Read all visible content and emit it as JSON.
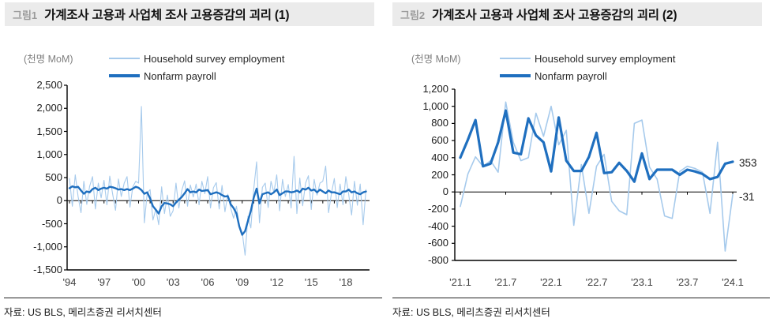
{
  "colors": {
    "household": "#a6caec",
    "nonfarm": "#1f6fbf",
    "axis": "#000000",
    "title_bar_bg": "#ebebeb",
    "fig_label": "#9a9a9a",
    "unit_text": "#7f7f7f"
  },
  "figure1": {
    "fig_label": "그림1",
    "title": "가계조사 고용과 사업체 조사 고용증감의 괴리 (1)",
    "unit": "(천명 MoM)",
    "source": "자료: US BLS, 메리츠증권 리서치센터"
  },
  "figure2": {
    "fig_label": "그림2",
    "title": "가계조사 고용과 사업체 조사 고용증감의 괴리 (2)",
    "unit": "(천명 MoM)",
    "source": "자료: US BLS, 메리츠증권 리서치센터",
    "end_label_nonfarm": "353",
    "end_label_household": "-31"
  },
  "chart_data": [
    {
      "type": "line",
      "title": "가계조사 고용과 사업체 조사 고용증감의 괴리 (1)",
      "ylabel": "(천명 MoM)",
      "ylim": [
        -1500,
        2500
      ],
      "ytick_step": 500,
      "ytick_labels": [
        "2,500",
        "2,000",
        "1,500",
        "1,000",
        "500",
        "0",
        "-500",
        "-1,000",
        "-1,500"
      ],
      "x_start": 1994,
      "x_end": 2019.75,
      "points_per_year": 4,
      "resolution_note": "values in thousands MoM, estimated from chart at quarterly resolution",
      "xtick_labels": [
        "'94",
        "'97",
        "'00",
        "'03",
        "'06",
        "'09",
        "'12",
        "'15",
        "'18"
      ],
      "xtick_positions": [
        0,
        12,
        24,
        36,
        48,
        60,
        72,
        84,
        96
      ],
      "grid": false,
      "legend_position": "top",
      "series": [
        {
          "name": "Household survey employment",
          "values": [
            480,
            -120,
            560,
            90,
            -260,
            420,
            -80,
            310,
            520,
            -180,
            380,
            60,
            440,
            -90,
            530,
            140,
            -210,
            470,
            90,
            380,
            520,
            -140,
            300,
            420,
            380,
            2040,
            -480,
            160,
            240,
            -420,
            -180,
            -520,
            300,
            -280,
            120,
            -340,
            -220,
            380,
            -160,
            220,
            430,
            -120,
            340,
            80,
            360,
            -90,
            420,
            150,
            520,
            -160,
            280,
            390,
            -180,
            330,
            -240,
            140,
            -160,
            -380,
            -120,
            -560,
            -680,
            -1180,
            -340,
            -590,
            240,
            840,
            -480,
            290,
            380,
            -150,
            420,
            180,
            560,
            -220,
            460,
            90,
            350,
            -160,
            958,
            -280,
            490,
            -110,
            380,
            540,
            -190,
            460,
            120,
            380,
            420,
            750,
            -260,
            160,
            480,
            -150,
            360,
            -90,
            520,
            140,
            -310,
            420,
            -100,
            360,
            -520,
            240
          ]
        },
        {
          "name": "Nonfarm payroll",
          "values": [
            270,
            310,
            290,
            300,
            220,
            150,
            200,
            180,
            250,
            280,
            230,
            260,
            280,
            260,
            300,
            290,
            270,
            240,
            250,
            230,
            250,
            230,
            260,
            300,
            280,
            230,
            150,
            180,
            50,
            -120,
            -200,
            -280,
            -120,
            -50,
            -60,
            -80,
            -120,
            -40,
            20,
            80,
            160,
            250,
            180,
            200,
            180,
            240,
            210,
            220,
            230,
            140,
            160,
            180,
            160,
            120,
            90,
            100,
            -80,
            -160,
            -280,
            -560,
            -740,
            -660,
            -440,
            -220,
            60,
            260,
            -60,
            140,
            160,
            180,
            140,
            180,
            240,
            120,
            160,
            200,
            200,
            180,
            190,
            220,
            180,
            260,
            240,
            280,
            220,
            240,
            180,
            240,
            200,
            160,
            220,
            180,
            180,
            160,
            140,
            200,
            200,
            240,
            180,
            200,
            160,
            140,
            180,
            200
          ]
        }
      ]
    },
    {
      "type": "line",
      "title": "가계조사 고용과 사업체 조사 고용증감의 괴리 (2)",
      "ylabel": "(천명 MoM)",
      "ylim": [
        -800,
        1200
      ],
      "ytick_step": 200,
      "ytick_labels": [
        "1,200",
        "1,000",
        "800",
        "600",
        "400",
        "200",
        "0",
        "-200",
        "-400",
        "-600",
        "-800"
      ],
      "x_start": 2021.0,
      "x_end": 2024.0,
      "points_per_year": 12,
      "resolution_note": "values in thousands MoM, monthly Jan-2021 to Jan-2024, estimated from chart",
      "xtick_labels": [
        "'21.1",
        "'21.7",
        "'22.1",
        "'22.7",
        "'23.1",
        "'23.7",
        "'24.1"
      ],
      "xtick_positions": [
        0,
        6,
        12,
        18,
        24,
        30,
        36
      ],
      "grid": false,
      "legend_position": "top",
      "end_labels": {
        "Nonfarm payroll": 353,
        "Household survey employment": -31
      },
      "series": [
        {
          "name": "Household survey employment",
          "values": [
            -170,
            210,
            410,
            300,
            365,
            230,
            1050,
            580,
            365,
            400,
            920,
            650,
            1000,
            550,
            720,
            -390,
            320,
            -250,
            300,
            440,
            -110,
            -220,
            -265,
            800,
            840,
            290,
            150,
            -280,
            -310,
            240,
            300,
            275,
            230,
            -250,
            580,
            -690,
            -31
          ]
        },
        {
          "name": "Nonfarm payroll",
          "values": [
            400,
            610,
            840,
            300,
            330,
            580,
            950,
            460,
            440,
            860,
            660,
            580,
            240,
            870,
            365,
            245,
            245,
            410,
            690,
            220,
            230,
            340,
            245,
            120,
            450,
            150,
            260,
            260,
            260,
            200,
            260,
            240,
            210,
            150,
            175,
            330,
            353
          ]
        }
      ]
    }
  ]
}
